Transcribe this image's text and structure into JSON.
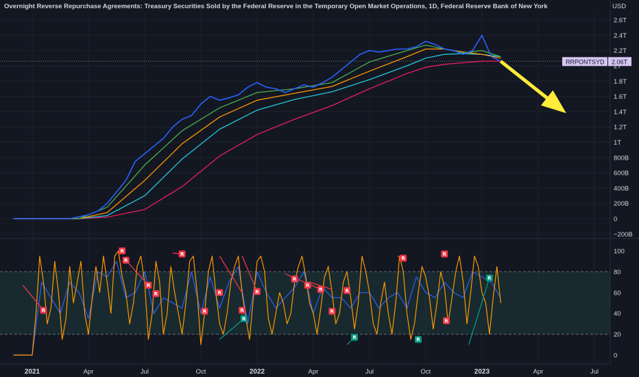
{
  "title": "Overnight Reverse Repurchase Agreements: Treasury Securities Sold by the Federal Reserve in the Temporary Open Market Operations, 1D, Federal Reserve Bank of New York",
  "price_axis": {
    "unit_label": "USD",
    "ticks": [
      {
        "label": "2.6T",
        "v": 2.6
      },
      {
        "label": "2.4T",
        "v": 2.4
      },
      {
        "label": "2.2T",
        "v": 2.2
      },
      {
        "label": "2T",
        "v": 2.0
      },
      {
        "label": "1.8T",
        "v": 1.8
      },
      {
        "label": "1.6T",
        "v": 1.6
      },
      {
        "label": "1.4T",
        "v": 1.4
      },
      {
        "label": "1.2T",
        "v": 1.2
      },
      {
        "label": "1T",
        "v": 1.0
      },
      {
        "label": "800B",
        "v": 0.8
      },
      {
        "label": "600B",
        "v": 0.6
      },
      {
        "label": "400B",
        "v": 0.4
      },
      {
        "label": "200B",
        "v": 0.2
      },
      {
        "label": "0",
        "v": 0.0
      },
      {
        "label": "−200B",
        "v": -0.2
      }
    ]
  },
  "symbol_tag": {
    "symbol": "RRPONTSYD",
    "value": "2.06T",
    "value_num": 2.06
  },
  "osc_axis": {
    "ticks": [
      100,
      80,
      60,
      40,
      20,
      0
    ],
    "upper_band": 80,
    "lower_band": 20
  },
  "time_axis": {
    "labels": [
      {
        "label": "2021",
        "t": 0,
        "bold": true
      },
      {
        "label": "Apr",
        "t": 3
      },
      {
        "label": "Jul",
        "t": 6
      },
      {
        "label": "Oct",
        "t": 9
      },
      {
        "label": "2022",
        "t": 12,
        "bold": true
      },
      {
        "label": "Apr",
        "t": 15
      },
      {
        "label": "Jul",
        "t": 18
      },
      {
        "label": "Oct",
        "t": 21
      },
      {
        "label": "2023",
        "t": 24,
        "bold": true
      },
      {
        "label": "Apr",
        "t": 27
      },
      {
        "label": "Jul",
        "t": 30
      }
    ]
  },
  "colors": {
    "background": "#131722",
    "price": "#2962ff",
    "ma_fast": "#4caf50",
    "ma_mid": "#ff9800",
    "ma_slow": "#26c6da",
    "ma_long": "#e91e63",
    "osc_main": "#ff9800",
    "osc_signal": "#2962ff",
    "osc_band": "#1e3a3a",
    "bear_marker": "#f23645",
    "bull_marker": "#089981",
    "arrow": "#ffeb3b",
    "tag_bg": "#d6c6f2",
    "grid": "#1e222d"
  },
  "chart_data": [
    {
      "type": "line",
      "x_unit": "months since Dec 2020",
      "y_unit": "USD trillions",
      "ylim": [
        -0.2,
        2.6
      ],
      "series": [
        {
          "name": "RRPONTSYD",
          "role": "price",
          "x": [
            -1.0,
            2.0,
            3.0,
            3.5,
            4.0,
            4.5,
            5.0,
            5.5,
            6.0,
            6.5,
            7.0,
            7.5,
            8.0,
            8.5,
            9.0,
            9.5,
            10.0,
            10.5,
            11.0,
            11.5,
            12.0,
            12.5,
            13.0,
            13.5,
            14.0,
            14.5,
            15.0,
            15.5,
            16.0,
            16.5,
            17.0,
            17.5,
            18.0,
            18.5,
            19.0,
            19.5,
            20.0,
            20.5,
            21.0,
            21.5,
            22.0,
            22.5,
            23.0,
            23.5,
            24.0,
            24.5,
            25.0
          ],
          "y": [
            0.0,
            0.0,
            0.05,
            0.1,
            0.2,
            0.35,
            0.5,
            0.75,
            0.85,
            0.95,
            1.05,
            1.2,
            1.3,
            1.35,
            1.5,
            1.6,
            1.55,
            1.58,
            1.62,
            1.72,
            1.78,
            1.72,
            1.7,
            1.65,
            1.7,
            1.75,
            1.72,
            1.78,
            1.85,
            1.95,
            2.05,
            2.15,
            2.2,
            2.18,
            2.2,
            2.22,
            2.22,
            2.25,
            2.32,
            2.28,
            2.22,
            2.2,
            2.15,
            2.2,
            2.4,
            2.12,
            2.06
          ]
        },
        {
          "name": "",
          "role": "ma_fast",
          "x": [
            -1.0,
            2.5,
            4.0,
            6.0,
            8.0,
            10.0,
            12.0,
            14.0,
            16.0,
            18.0,
            20.0,
            21.0,
            22.0,
            23.0,
            24.0,
            25.0
          ],
          "y": [
            0.0,
            0.0,
            0.15,
            0.7,
            1.15,
            1.45,
            1.65,
            1.7,
            1.78,
            2.05,
            2.2,
            2.27,
            2.22,
            2.17,
            2.2,
            2.12
          ]
        },
        {
          "name": "",
          "role": "ma_mid",
          "x": [
            -1.0,
            2.5,
            4.0,
            6.0,
            8.0,
            10.0,
            12.0,
            14.0,
            16.0,
            18.0,
            20.0,
            21.0,
            22.0,
            23.0,
            24.0,
            25.0
          ],
          "y": [
            0.0,
            0.0,
            0.08,
            0.5,
            0.98,
            1.33,
            1.55,
            1.64,
            1.73,
            1.93,
            2.12,
            2.22,
            2.22,
            2.18,
            2.15,
            2.1
          ]
        },
        {
          "name": "",
          "role": "ma_slow",
          "x": [
            -1.0,
            2.5,
            4.0,
            6.0,
            8.0,
            10.0,
            12.0,
            14.0,
            16.0,
            18.0,
            20.0,
            21.0,
            22.0,
            23.0,
            24.0,
            25.0
          ],
          "y": [
            0.0,
            0.0,
            0.04,
            0.3,
            0.78,
            1.17,
            1.42,
            1.56,
            1.66,
            1.82,
            2.0,
            2.1,
            2.15,
            2.16,
            2.15,
            2.12
          ]
        },
        {
          "name": "",
          "role": "ma_long",
          "x": [
            -1.0,
            2.5,
            4.0,
            6.0,
            8.0,
            10.0,
            12.0,
            14.0,
            16.0,
            18.0,
            20.0,
            21.0,
            22.0,
            23.0,
            24.0,
            25.0
          ],
          "y": [
            0.0,
            0.0,
            0.02,
            0.12,
            0.42,
            0.82,
            1.1,
            1.3,
            1.48,
            1.7,
            1.9,
            1.98,
            2.02,
            2.04,
            2.06,
            2.06
          ]
        }
      ],
      "annotation_arrow": {
        "from": [
          25.0,
          2.06
        ],
        "to": [
          28.5,
          1.38
        ]
      }
    },
    {
      "type": "line",
      "x_unit": "months since Dec 2020",
      "ylim": [
        -5,
        105
      ],
      "series": [
        {
          "name": "",
          "role": "osc_main",
          "x": [
            -1.0,
            0.0,
            0.2,
            0.4,
            0.6,
            0.8,
            1.0,
            1.2,
            1.4,
            1.6,
            1.8,
            2.0,
            2.2,
            2.4,
            2.6,
            2.8,
            3.0,
            3.2,
            3.4,
            3.6,
            3.8,
            4.0,
            4.2,
            4.4,
            4.6,
            4.8,
            5.0,
            5.2,
            5.4,
            5.6,
            5.8,
            6.0,
            6.2,
            6.4,
            6.6,
            6.8,
            7.0,
            7.2,
            7.4,
            7.6,
            7.8,
            8.0,
            8.2,
            8.4,
            8.6,
            8.8,
            9.0,
            9.2,
            9.4,
            9.6,
            9.8,
            10.0,
            10.2,
            10.4,
            10.6,
            10.8,
            11.0,
            11.2,
            11.4,
            11.6,
            11.8,
            12.0,
            12.2,
            12.4,
            12.6,
            12.8,
            13.0,
            13.2,
            13.4,
            13.6,
            13.8,
            14.0,
            14.2,
            14.4,
            14.6,
            14.8,
            15.0,
            15.2,
            15.4,
            15.6,
            15.8,
            16.0,
            16.2,
            16.4,
            16.6,
            16.8,
            17.0,
            17.2,
            17.4,
            17.6,
            17.8,
            18.0,
            18.2,
            18.4,
            18.6,
            18.8,
            19.0,
            19.2,
            19.4,
            19.6,
            19.8,
            20.0,
            20.2,
            20.4,
            20.6,
            20.8,
            21.0,
            21.2,
            21.4,
            21.6,
            21.8,
            22.0,
            22.2,
            22.4,
            22.6,
            22.8,
            23.0,
            23.2,
            23.4,
            23.6,
            23.8,
            24.0,
            24.2,
            24.4,
            24.6,
            24.8,
            25.0
          ],
          "y": [
            0,
            0,
            40,
            95,
            70,
            30,
            45,
            90,
            60,
            15,
            35,
            85,
            50,
            70,
            90,
            40,
            20,
            55,
            85,
            60,
            95,
            70,
            40,
            95,
            100,
            75,
            60,
            30,
            50,
            85,
            95,
            70,
            15,
            40,
            90,
            70,
            20,
            40,
            85,
            60,
            40,
            20,
            50,
            90,
            95,
            60,
            10,
            40,
            80,
            95,
            60,
            30,
            20,
            40,
            70,
            85,
            95,
            60,
            35,
            15,
            55,
            90,
            95,
            80,
            35,
            20,
            40,
            60,
            50,
            30,
            40,
            70,
            85,
            95,
            75,
            50,
            40,
            20,
            45,
            75,
            85,
            60,
            30,
            40,
            70,
            80,
            55,
            25,
            50,
            95,
            80,
            60,
            30,
            20,
            50,
            70,
            40,
            20,
            50,
            95,
            80,
            40,
            15,
            30,
            60,
            85,
            75,
            55,
            25,
            50,
            80,
            65,
            30,
            55,
            80,
            95,
            70,
            30,
            60,
            95,
            85,
            60,
            50,
            20,
            55,
            85,
            50
          ]
        },
        {
          "name": "",
          "role": "osc_signal",
          "x": [
            -1.0,
            0.0,
            0.5,
            1.0,
            1.5,
            2.0,
            2.5,
            3.0,
            3.5,
            4.0,
            4.5,
            5.0,
            5.5,
            6.0,
            6.5,
            7.0,
            7.5,
            8.0,
            8.5,
            9.0,
            9.5,
            10.0,
            10.5,
            11.0,
            11.5,
            12.0,
            12.5,
            13.0,
            13.5,
            14.0,
            14.5,
            15.0,
            15.5,
            16.0,
            16.5,
            17.0,
            17.5,
            18.0,
            18.5,
            19.0,
            19.5,
            20.0,
            20.5,
            21.0,
            21.5,
            22.0,
            22.5,
            23.0,
            23.5,
            24.0,
            24.5,
            25.0
          ],
          "y": [
            0,
            0,
            70,
            55,
            40,
            70,
            60,
            35,
            80,
            75,
            90,
            55,
            60,
            80,
            40,
            55,
            50,
            45,
            80,
            40,
            75,
            45,
            70,
            85,
            30,
            80,
            60,
            45,
            55,
            65,
            80,
            40,
            65,
            55,
            55,
            45,
            60,
            60,
            45,
            55,
            60,
            45,
            75,
            60,
            55,
            70,
            60,
            55,
            80,
            75,
            70,
            55
          ]
        }
      ],
      "signals": [
        {
          "kind": "bear",
          "x": 0.6,
          "y": 43
        },
        {
          "kind": "bear",
          "x": 4.8,
          "y": 100
        },
        {
          "kind": "bear",
          "x": 5.0,
          "y": 91
        },
        {
          "kind": "bear",
          "x": 6.2,
          "y": 67
        },
        {
          "kind": "bear",
          "x": 6.6,
          "y": 59
        },
        {
          "kind": "bear",
          "x": 8.0,
          "y": 97
        },
        {
          "kind": "bear",
          "x": 9.2,
          "y": 42
        },
        {
          "kind": "bear",
          "x": 10.0,
          "y": 60
        },
        {
          "kind": "bear",
          "x": 11.2,
          "y": 43
        },
        {
          "kind": "bear",
          "x": 12.0,
          "y": 61
        },
        {
          "kind": "bear",
          "x": 14.0,
          "y": 73
        },
        {
          "kind": "bear",
          "x": 14.7,
          "y": 67
        },
        {
          "kind": "bear",
          "x": 15.4,
          "y": 63
        },
        {
          "kind": "bear",
          "x": 16.0,
          "y": 42
        },
        {
          "kind": "bear",
          "x": 16.8,
          "y": 62
        },
        {
          "kind": "bear",
          "x": 19.8,
          "y": 93
        },
        {
          "kind": "bear",
          "x": 22.0,
          "y": 97
        },
        {
          "kind": "bear",
          "x": 22.1,
          "y": 33
        },
        {
          "kind": "bull",
          "x": 11.3,
          "y": 35
        },
        {
          "kind": "bull",
          "x": 17.2,
          "y": 17
        },
        {
          "kind": "bull",
          "x": 20.6,
          "y": 15
        },
        {
          "kind": "bull",
          "x": 24.4,
          "y": 74
        }
      ],
      "divergence_lines": [
        {
          "kind": "bear",
          "from": [
            -0.5,
            67
          ],
          "to": [
            0.6,
            43
          ]
        },
        {
          "kind": "bear",
          "from": [
            5.0,
            91
          ],
          "to": [
            6.2,
            67
          ]
        },
        {
          "kind": "bear",
          "from": [
            7.5,
            98
          ],
          "to": [
            8.0,
            97
          ]
        },
        {
          "kind": "bear",
          "from": [
            10.0,
            95
          ],
          "to": [
            11.2,
            60
          ]
        },
        {
          "kind": "bear",
          "from": [
            11.2,
            95
          ],
          "to": [
            12.0,
            61
          ]
        },
        {
          "kind": "bear",
          "from": [
            13.5,
            78
          ],
          "to": [
            15.4,
            63
          ]
        },
        {
          "kind": "bear",
          "from": [
            14.8,
            70
          ],
          "to": [
            16.0,
            63
          ]
        },
        {
          "kind": "bear",
          "from": [
            19.5,
            95
          ],
          "to": [
            19.8,
            93
          ]
        },
        {
          "kind": "bull",
          "from": [
            10.0,
            15
          ],
          "to": [
            11.3,
            35
          ]
        },
        {
          "kind": "bull",
          "from": [
            16.8,
            10
          ],
          "to": [
            17.2,
            17
          ]
        },
        {
          "kind": "bull",
          "from": [
            23.3,
            10
          ],
          "to": [
            24.4,
            74
          ]
        }
      ]
    }
  ]
}
